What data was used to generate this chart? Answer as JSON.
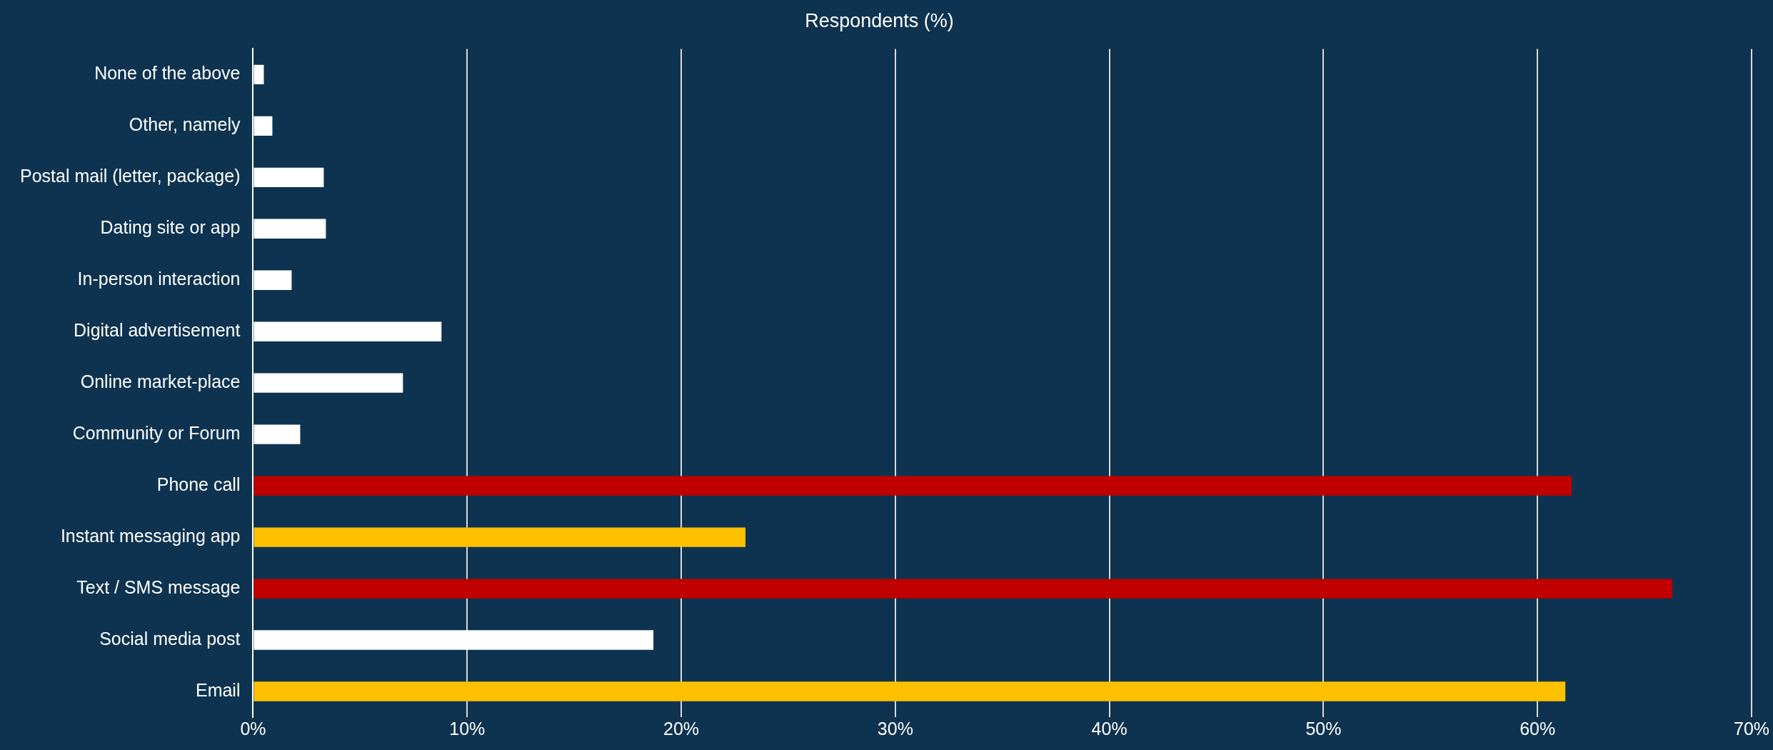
{
  "chart_data": {
    "type": "bar",
    "orientation": "horizontal",
    "title": "Respondents (%)",
    "categories": [
      "None of the above",
      "Other, namely",
      "Postal mail (letter, package)",
      "Dating site or app",
      "In-person interaction",
      "Digital advertisement",
      "Online market-place",
      "Community or Forum",
      "Phone call",
      "Instant messaging app",
      "Text / SMS message",
      "Social media post",
      "Email"
    ],
    "values": [
      0.5,
      0.9,
      3.3,
      3.4,
      1.8,
      8.8,
      7.0,
      2.2,
      61.6,
      23.0,
      66.3,
      18.7,
      61.3
    ],
    "colors": [
      "#ffffff",
      "#ffffff",
      "#ffffff",
      "#ffffff",
      "#ffffff",
      "#ffffff",
      "#ffffff",
      "#ffffff",
      "#c00000",
      "#ffc000",
      "#c00000",
      "#ffffff",
      "#ffc000"
    ],
    "xlim": [
      0,
      70
    ],
    "xticks": [
      {
        "value": 0,
        "label": "0%"
      },
      {
        "value": 10,
        "label": "10%"
      },
      {
        "value": 20,
        "label": "20%"
      },
      {
        "value": 30,
        "label": "30%"
      },
      {
        "value": 40,
        "label": "40%"
      },
      {
        "value": 50,
        "label": "50%"
      },
      {
        "value": 60,
        "label": "60%"
      },
      {
        "value": 70,
        "label": "70%"
      }
    ],
    "grid": "x"
  }
}
